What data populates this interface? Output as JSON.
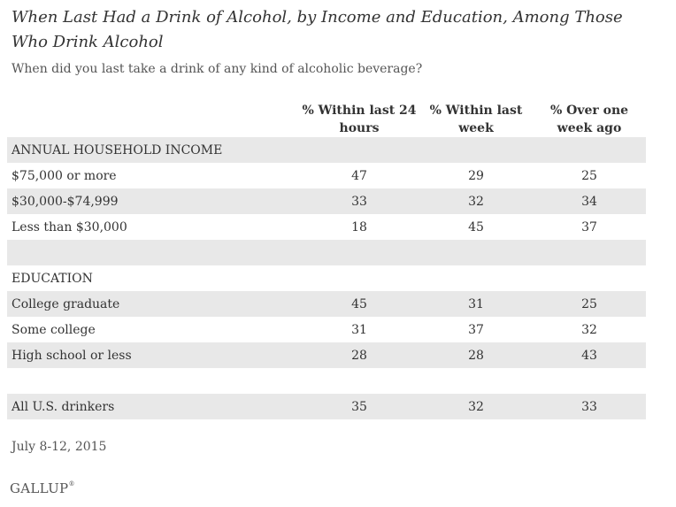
{
  "title": "When Last Had a Drink of Alcohol, by Income and Education, Among Those Who Drink Alcohol",
  "subtitle": "When did you last take a drink of any kind of alcoholic beverage?",
  "chart_data": {
    "type": "table",
    "columns": [
      "% Within last 24 hours",
      "% Within last week",
      "% Over one week ago"
    ],
    "sections": [
      {
        "heading": "ANNUAL HOUSEHOLD INCOME",
        "rows": [
          {
            "label": "$75,000 or more",
            "values": [
              47,
              29,
              25
            ]
          },
          {
            "label": "$30,000-$74,999",
            "values": [
              33,
              32,
              34
            ]
          },
          {
            "label": "Less than $30,000",
            "values": [
              18,
              45,
              37
            ]
          }
        ]
      },
      {
        "heading": "EDUCATION",
        "rows": [
          {
            "label": "College graduate",
            "values": [
              45,
              31,
              25
            ]
          },
          {
            "label": "Some college",
            "values": [
              31,
              37,
              32
            ]
          },
          {
            "label": "High school or less",
            "values": [
              28,
              28,
              43
            ]
          }
        ]
      }
    ],
    "total": {
      "label": "All U.S. drinkers",
      "values": [
        35,
        32,
        33
      ]
    }
  },
  "date": "July 8-12, 2015",
  "source": "GALLUP",
  "colors": {
    "shade": "#e8e8e8",
    "text": "#333333"
  }
}
